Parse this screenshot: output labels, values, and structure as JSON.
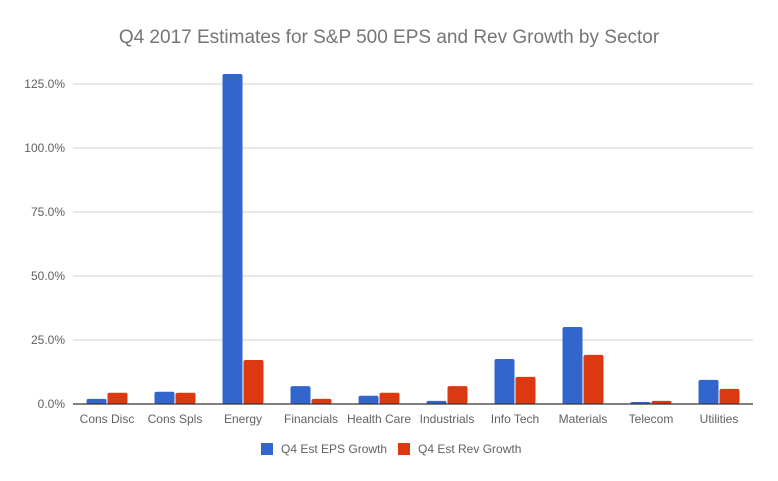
{
  "chart_data": {
    "type": "bar",
    "title": "Q4 2017 Estimates for S&P 500 EPS and Rev Growth by Sector",
    "xlabel": "",
    "ylabel": "",
    "ylim": [
      0,
      130
    ],
    "yticks": [
      0,
      25,
      50,
      75,
      100,
      125
    ],
    "ytick_labels": [
      "0.0%",
      "25.0%",
      "50.0%",
      "75.0%",
      "100.0%",
      "125.0%"
    ],
    "grid": true,
    "legend_position": "bottom",
    "categories": [
      "Cons Disc",
      "Cons Spls",
      "Energy",
      "Financials",
      "Health Care",
      "Industrials",
      "Info Tech",
      "Materials",
      "Telecom",
      "Utilities"
    ],
    "series": [
      {
        "name": "Q4 Est EPS Growth",
        "color": "#3366cc",
        "values": [
          2.0,
          4.8,
          128.9,
          7.0,
          3.2,
          1.2,
          17.6,
          30.1,
          0.8,
          9.4
        ]
      },
      {
        "name": "Q4 Est Rev Growth",
        "color": "#dc3912",
        "values": [
          4.4,
          4.4,
          17.2,
          2.0,
          4.4,
          7.0,
          10.6,
          19.2,
          1.2,
          5.9
        ]
      }
    ]
  }
}
